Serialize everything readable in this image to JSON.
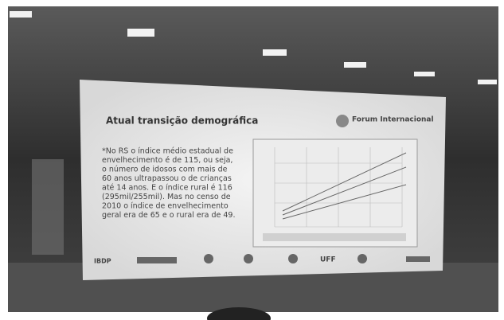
{
  "slide": {
    "title": "Atual transição demográfica",
    "event": "Forum Internacional",
    "quote": {
      "lines": [
        "*No RS o índice médio estadual de",
        "envelhecimento é de 115, ou seja,",
        "o número de idosos com mais de",
        "60 anos ultrapassou o de crianças",
        "até 14 anos. E o índice rural é 116",
        "(295mil/255mil). Mas no censo de",
        "2010 o índice de envelhecimento",
        "geral era de 65 e o rural era de 49."
      ]
    },
    "logos": [
      "IBDP",
      "UFF"
    ]
  }
}
